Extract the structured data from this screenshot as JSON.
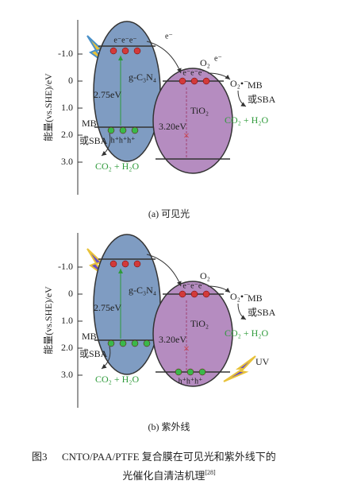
{
  "panel_a": {
    "y_axis_label": "能量(vs.SHE)/eV",
    "ticks": [
      "-1.0",
      "0",
      "1.0",
      "2.0",
      "3.0"
    ],
    "semiconductor_1": "g-C₃N₄",
    "gap_1": "2.75eV",
    "semiconductor_2": "TiO₂",
    "gap_2": "3.20eV",
    "electrons_1": "e⁻e⁻e⁻",
    "electrons_2": "e⁻e⁻e⁻",
    "holes_1": "h⁺h⁺h⁺",
    "transfer_electron": "e⁻",
    "oxygen": "O₂",
    "electron_oxygen": "e⁻",
    "superoxide": "O₂•⁻",
    "pollutant_top": "MB",
    "pollutant_top_alt": "或SBA",
    "products_top": "CO₂ + H₂O",
    "pollutant_bottom": "MB",
    "pollutant_bottom_alt": "或SBA",
    "products_bottom": "CO₂ + H₂O",
    "caption": "(a) 可见光"
  },
  "panel_b": {
    "y_axis_label": "能量(vs.SHE)/eV",
    "ticks": [
      "-1.0",
      "0",
      "1.0",
      "2.0",
      "3.0"
    ],
    "semiconductor_1": "g-C₃N₄",
    "gap_1": "2.75eV",
    "semiconductor_2": "TiO₂",
    "gap_2": "3.20eV",
    "electrons_2": "e⁻e⁻e⁻",
    "holes_2": "h⁺h⁺h⁺",
    "oxygen": "O₂",
    "superoxide": "O₂•⁻",
    "pollutant_top": "MB",
    "pollutant_top_alt": "或SBA",
    "products_top": "CO₂ + H₂O",
    "pollutant_bottom": "MB",
    "pollutant_bottom_alt": "或SBA",
    "products_bottom": "CO₂ + H₂O",
    "uv": "UV",
    "caption": "(b) 紫外线"
  },
  "figure_caption": {
    "label": "图3",
    "line_1": "CNTO/PAA/PTFE 复合膜在可见光和紫外线下的",
    "line_2": "光催化自清洁机理",
    "reference": "[28]"
  }
}
